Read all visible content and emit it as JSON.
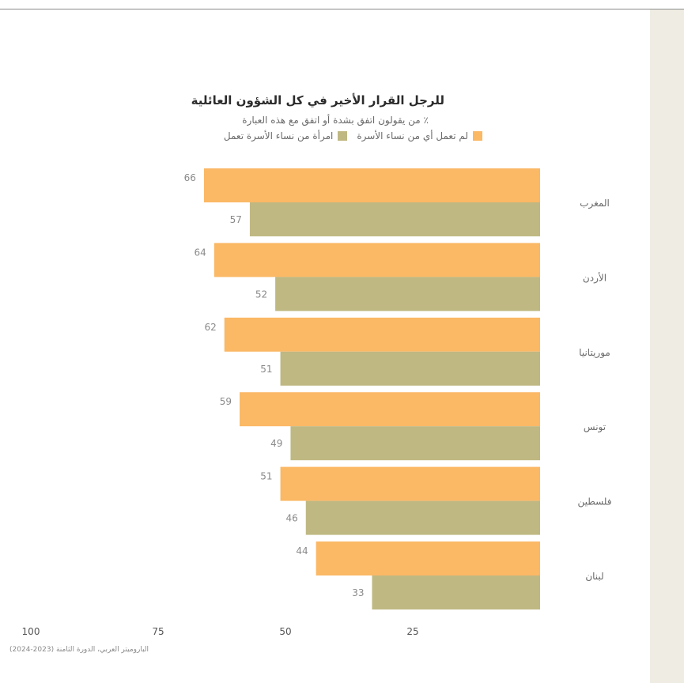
{
  "chart_data": {
    "type": "bar",
    "orientation": "horizontal",
    "title": "للرجل القرار الأخير في كل الشؤون العائلية",
    "subtitle": "٪ من يقولون اتفق بشدة أو اتفق مع هذه العبارة",
    "categories": [
      "المغرب",
      "الأردن",
      "موريتانيا",
      "تونس",
      "فلسطين",
      "لبنان"
    ],
    "series": [
      {
        "name": "لم تعمل أي من نساء الأسرة",
        "color": "#fbb865",
        "values": [
          66,
          64,
          62,
          59,
          51,
          44
        ]
      },
      {
        "name": "امرأة من نساء الأسرة تعمل",
        "color": "#bfb882",
        "values": [
          57,
          52,
          51,
          49,
          46,
          33
        ]
      }
    ],
    "xaxis": {
      "ticks": [
        100,
        75,
        50,
        25
      ],
      "range": [
        0,
        100
      ],
      "reversed": true
    },
    "legend_position": "top",
    "grid": false,
    "source": "الباروميتر العربي، الدورة الثامنة (2023-2024)"
  }
}
